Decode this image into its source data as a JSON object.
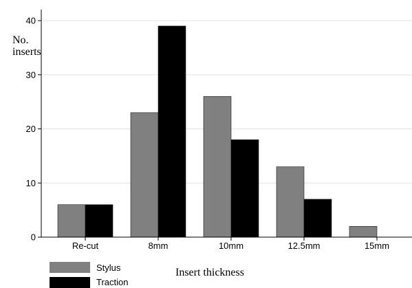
{
  "chart_data": {
    "type": "bar",
    "categories": [
      "Re-cut",
      "8mm",
      "10mm",
      "12.5mm",
      "15mm"
    ],
    "series": [
      {
        "name": "Stylus",
        "values": [
          6,
          23,
          26,
          13,
          2
        ],
        "color": "#808080"
      },
      {
        "name": "Traction",
        "values": [
          6,
          39,
          18,
          7,
          0
        ],
        "color": "#000000"
      }
    ],
    "ylabel_line1": "No.",
    "ylabel_line2": "inserts",
    "xlabel": "Insert thickness",
    "ylim": [
      0,
      40
    ],
    "yticks": [
      0,
      10,
      20,
      30,
      40
    ],
    "grid": true,
    "legend_position": "bottom-left"
  }
}
